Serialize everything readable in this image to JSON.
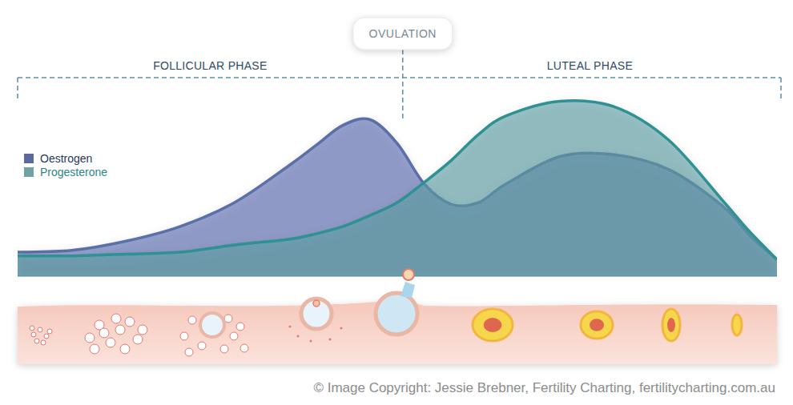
{
  "chart_data": {
    "type": "area",
    "x": [
      0,
      2,
      4,
      6,
      8,
      10,
      11,
      12,
      13,
      14,
      15,
      16,
      17,
      18,
      20,
      22,
      24,
      26,
      27,
      28
    ],
    "series": [
      {
        "name": "Oestrogen",
        "color": "#5b6fa8",
        "values": [
          13,
          14,
          19,
          27,
          40,
          60,
          71,
          82,
          85,
          72,
          50,
          39,
          40,
          50,
          65,
          66,
          58,
          38,
          22,
          9
        ]
      },
      {
        "name": "Progesterone",
        "color": "#2e9193",
        "values": [
          11,
          11,
          12,
          13,
          17,
          20,
          23,
          27,
          33,
          40,
          51,
          63,
          77,
          87,
          95,
          92,
          74,
          41,
          24,
          9
        ]
      }
    ],
    "xlim": [
      0,
      28
    ],
    "ylim": [
      0,
      100
    ],
    "tick_labels": false,
    "grid": false,
    "legend": "left",
    "annotations": [
      {
        "text": "OVULATION",
        "x": 14.2
      },
      {
        "text": "FOLLICULAR PHASE"
      },
      {
        "text": "LUTEAL PHASE"
      },
      {
        "text": "© Image Copyright: Jessie Brebner, Fertility Charting, fertilitycharting.com.au"
      }
    ]
  }
}
